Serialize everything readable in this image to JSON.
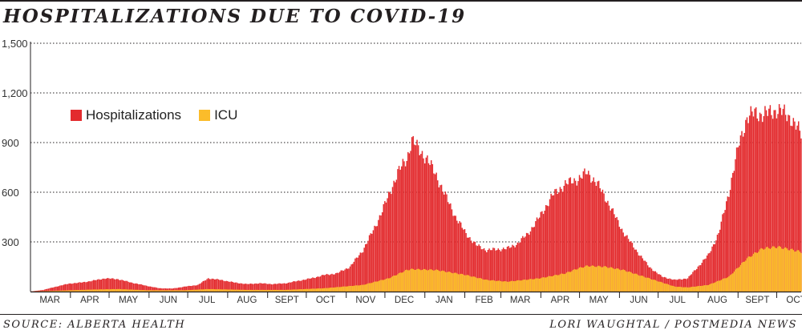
{
  "header": {
    "title": "HOSPITALIZATIONS DUE TO COVID-19"
  },
  "footer": {
    "source": "SOURCE: ALBERTA HEALTH",
    "credit": "LORI WAUGHTAL / POSTMEDIA NEWS"
  },
  "colors": {
    "hospitalizations": "#e32b2e",
    "icu": "#fbbc2a",
    "axis": "#231f20",
    "grid": "#231f20"
  },
  "chart_data": {
    "type": "bar",
    "title": "HOSPITALIZATIONS DUE TO COVID-19",
    "xlabel": "",
    "ylabel": "",
    "ylim": [
      0,
      1500
    ],
    "yticks": [
      300,
      600,
      900,
      1200,
      1500
    ],
    "ytick_labels": [
      "300",
      "600",
      "900",
      "1,200",
      "1,500"
    ],
    "grid": "horizontal dotted",
    "legend_position": "upper-left",
    "x_labels": [
      "MAR",
      "APR",
      "MAY",
      "JUN",
      "JUL",
      "AUG",
      "SEPT",
      "OCT",
      "NOV",
      "DEC",
      "JAN",
      "FEB",
      "MAR",
      "APR",
      "MAY",
      "JUN",
      "JUL",
      "AUG",
      "SEPT",
      "OCT"
    ],
    "x_label_days": [
      15,
      46,
      76,
      107,
      137,
      168,
      199,
      229,
      260,
      290,
      321,
      352,
      380,
      411,
      441,
      472,
      502,
      533,
      564,
      594
    ],
    "x_tick_days": [
      31,
      61,
      92,
      122,
      153,
      184,
      214,
      245,
      275,
      306,
      337,
      365,
      396,
      426,
      457,
      487,
      518,
      549,
      579
    ],
    "series": [
      {
        "name": "Hospitalizations",
        "x": [
          0,
          10,
          20,
          30,
          40,
          48,
          58,
          68,
          78,
          90,
          100,
          110,
          120,
          130,
          138,
          148,
          158,
          168,
          178,
          188,
          198,
          208,
          218,
          228,
          238,
          248,
          258,
          268,
          278,
          285,
          292,
          296,
          302,
          308,
          315,
          322,
          330,
          338,
          346,
          354,
          362,
          370,
          378,
          386,
          395,
          405,
          415,
          425,
          432,
          440,
          446,
          452,
          460,
          470,
          480,
          490,
          500,
          510,
          518,
          526,
          534,
          542,
          550,
          556,
          562,
          568,
          574,
          580,
          590,
          598
        ],
        "values": [
          0,
          10,
          30,
          48,
          55,
          65,
          80,
          75,
          55,
          35,
          20,
          18,
          30,
          40,
          80,
          70,
          55,
          45,
          50,
          45,
          50,
          65,
          80,
          100,
          110,
          150,
          250,
          400,
          580,
          720,
          800,
          920,
          850,
          800,
          700,
          580,
          450,
          350,
          280,
          250,
          255,
          260,
          290,
          350,
          450,
          580,
          650,
          680,
          720,
          650,
          570,
          480,
          360,
          250,
          150,
          90,
          70,
          80,
          150,
          220,
          350,
          600,
          900,
          1050,
          1080,
          1070,
          1080,
          1100,
          1050,
          950
        ]
      },
      {
        "name": "ICU",
        "x": [
          0,
          20,
          48,
          68,
          90,
          120,
          138,
          168,
          198,
          228,
          258,
          278,
          292,
          296,
          315,
          338,
          354,
          370,
          395,
          415,
          425,
          432,
          446,
          460,
          480,
          500,
          510,
          526,
          542,
          556,
          568,
          580,
          598
        ],
        "values": [
          0,
          5,
          12,
          15,
          8,
          8,
          15,
          10,
          10,
          20,
          40,
          80,
          130,
          135,
          130,
          100,
          70,
          60,
          80,
          110,
          140,
          155,
          150,
          130,
          80,
          30,
          25,
          40,
          90,
          200,
          260,
          270,
          240
        ]
      }
    ]
  }
}
